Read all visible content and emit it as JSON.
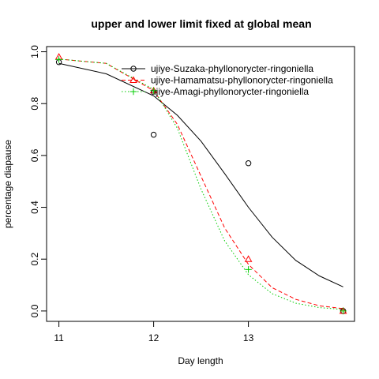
{
  "chart_data": {
    "type": "scatter",
    "title": "upper and lower limit fixed at global mean",
    "xlabel": "Day length",
    "ylabel": "percentage diapause",
    "xlim": [
      10.87,
      14.12
    ],
    "ylim": [
      -0.04,
      1.02
    ],
    "x_ticks": [
      11,
      12,
      13
    ],
    "y_ticks": [
      0.0,
      0.2,
      0.4,
      0.6,
      0.8,
      1.0
    ],
    "x_tick_labels": [
      "11",
      "12",
      "13"
    ],
    "y_tick_labels": [
      "0.0",
      "0.2",
      "0.4",
      "0.6",
      "0.8",
      "1.0"
    ],
    "legend_position": "top-right",
    "series": [
      {
        "name": "ujiye-Suzaka-phyllonorycter-ringoniella",
        "color": "#000000",
        "marker": "circle",
        "line_style": "solid",
        "points": [
          [
            11,
            0.96
          ],
          [
            12,
            0.68
          ],
          [
            13,
            0.57
          ],
          [
            14,
            0.0
          ]
        ],
        "curve": [
          [
            11,
            0.955
          ],
          [
            11.5,
            0.915
          ],
          [
            12,
            0.83
          ],
          [
            12.25,
            0.755
          ],
          [
            12.5,
            0.655
          ],
          [
            12.75,
            0.53
          ],
          [
            13,
            0.4
          ],
          [
            13.25,
            0.285
          ],
          [
            13.5,
            0.195
          ],
          [
            13.75,
            0.135
          ],
          [
            14,
            0.093
          ]
        ]
      },
      {
        "name": "ujiye-Hamamatsu-phyllonorycter-ringoniella",
        "color": "#ff0000",
        "marker": "triangle",
        "line_style": "dashed",
        "points": [
          [
            11,
            0.98
          ],
          [
            12,
            0.85
          ],
          [
            13,
            0.2
          ],
          [
            14,
            0.0
          ]
        ],
        "curve": [
          [
            11,
            0.972
          ],
          [
            11.5,
            0.955
          ],
          [
            12,
            0.85
          ],
          [
            12.25,
            0.72
          ],
          [
            12.5,
            0.52
          ],
          [
            12.75,
            0.32
          ],
          [
            13,
            0.18
          ],
          [
            13.25,
            0.09
          ],
          [
            13.5,
            0.045
          ],
          [
            13.75,
            0.02
          ],
          [
            14,
            0.009
          ]
        ]
      },
      {
        "name": "ujiye-Amagi-phyllonorycter-ringoniella",
        "color": "#00cc00",
        "marker": "plus",
        "line_style": "dotted",
        "points": [
          [
            11,
            0.97
          ],
          [
            12,
            0.85
          ],
          [
            13,
            0.16
          ],
          [
            14,
            0.0
          ]
        ],
        "curve": [
          [
            11,
            0.972
          ],
          [
            11.5,
            0.955
          ],
          [
            12,
            0.855
          ],
          [
            12.25,
            0.705
          ],
          [
            12.5,
            0.47
          ],
          [
            12.75,
            0.27
          ],
          [
            13,
            0.14
          ],
          [
            13.25,
            0.067
          ],
          [
            13.5,
            0.03
          ],
          [
            13.75,
            0.013
          ],
          [
            14,
            0.006
          ]
        ]
      }
    ]
  }
}
